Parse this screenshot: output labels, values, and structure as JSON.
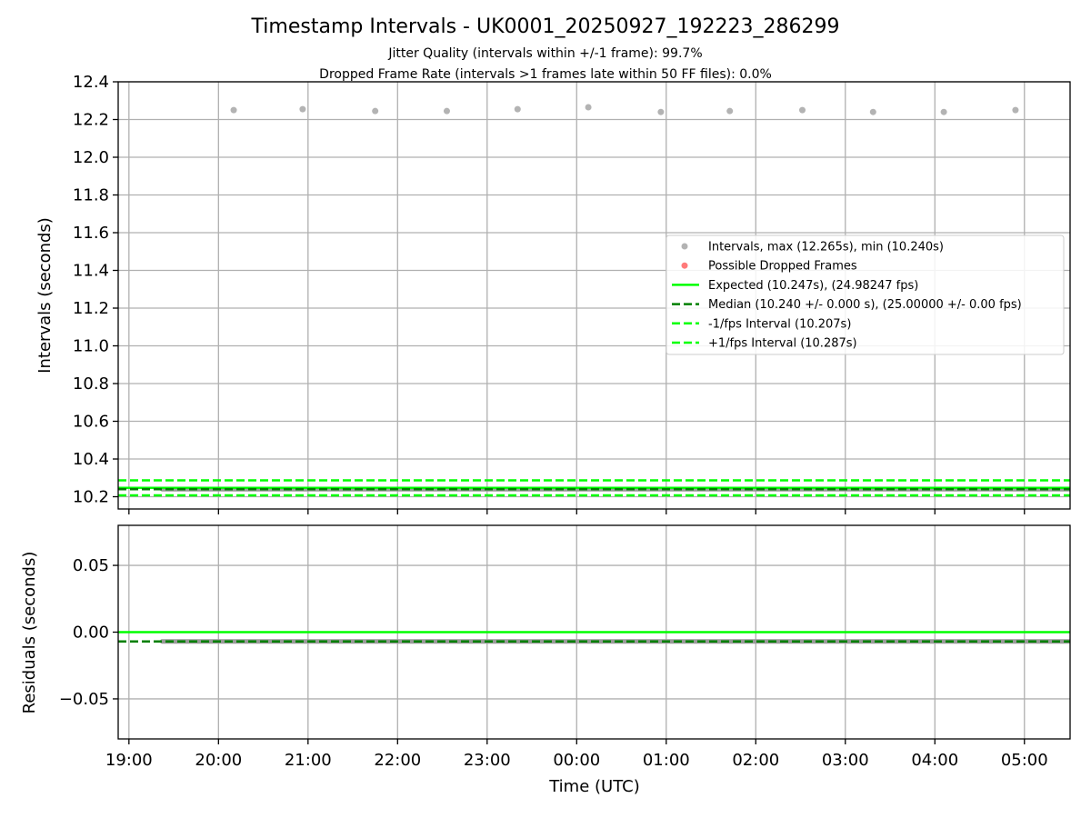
{
  "chart_data": [
    {
      "type": "scatter",
      "title": "Timestamp Intervals - UK0001_20250927_192223_286299",
      "subtitle_lines": [
        "Jitter Quality (intervals within +/-1 frame): 99.7%",
        "Dropped Frame Rate (intervals >1 frames late within 50 FF files): 0.0%"
      ],
      "xlabel": "",
      "ylabel": "Intervals (seconds)",
      "x_units": "hours since 19:00 UTC",
      "xlim": [
        -0.12,
        10.51
      ],
      "ylim": [
        10.135,
        12.4
      ],
      "yticks": [
        10.2,
        10.4,
        10.6,
        10.8,
        11.0,
        11.2,
        11.4,
        11.6,
        11.8,
        12.0,
        12.2,
        12.4
      ],
      "ytick_labels": [
        "10.2",
        "10.4",
        "10.6",
        "10.8",
        "11.0",
        "11.2",
        "11.4",
        "11.6",
        "11.8",
        "12.0",
        "12.2",
        "12.4"
      ],
      "grid": true,
      "legend_position": "center-right",
      "series": [
        {
          "name": "Intervals, max (12.265s), min (10.240s)",
          "kind": "scatter",
          "color": "#999999",
          "outliers": {
            "x": [
              1.17,
              1.94,
              2.75,
              3.55,
              4.34,
              5.13,
              5.94,
              6.71,
              7.52,
              8.31,
              9.1,
              9.9
            ],
            "y": [
              12.25,
              12.255,
              12.245,
              12.245,
              12.255,
              12.265,
              12.24,
              12.245,
              12.25,
              12.24,
              12.24,
              12.25
            ]
          },
          "dense_band": {
            "x_start": 0.37,
            "x_end": 10.51,
            "y": 10.24
          }
        },
        {
          "name": "Possible Dropped Frames",
          "kind": "scatter",
          "color": "#ff4d4d",
          "x": [],
          "y": []
        },
        {
          "name": "Expected (10.247s), (24.98247 fps)",
          "kind": "hline",
          "y": 10.247,
          "color": "#00ff00",
          "dash": false
        },
        {
          "name": "Median (10.240 +/- 0.000 s), (25.00000 +/- 0.00 fps)",
          "kind": "hline",
          "y": 10.24,
          "color": "#007f00",
          "dash": true
        },
        {
          "name": "-1/fps Interval (10.207s)",
          "kind": "hline",
          "y": 10.207,
          "color": "#00ff00",
          "dash": true
        },
        {
          "name": "+1/fps Interval (10.287s)",
          "kind": "hline",
          "y": 10.287,
          "color": "#00ff00",
          "dash": true
        }
      ]
    },
    {
      "type": "line",
      "xlabel": "Time (UTC)",
      "ylabel": "Residuals (seconds)",
      "xlim": [
        -0.12,
        10.51
      ],
      "ylim": [
        -0.08,
        0.08
      ],
      "yticks": [
        -0.05,
        0.0,
        0.05
      ],
      "ytick_labels": [
        "−0.05",
        "0.00",
        "0.05"
      ],
      "xticks": [
        0,
        1,
        2,
        3,
        4,
        5,
        6,
        7,
        8,
        9,
        10
      ],
      "xtick_labels": [
        "19:00",
        "20:00",
        "21:00",
        "22:00",
        "23:00",
        "00:00",
        "01:00",
        "02:00",
        "03:00",
        "04:00",
        "05:00"
      ],
      "grid": true,
      "series": [
        {
          "name": "Expected residual",
          "kind": "hline",
          "y": 0.0,
          "color": "#00ff00",
          "dash": false
        },
        {
          "name": "Median residual",
          "kind": "hline",
          "y": -0.007,
          "color": "#007f00",
          "dash": true
        },
        {
          "name": "Residuals",
          "kind": "band",
          "x_start": 0.37,
          "x_end": 10.51,
          "y": -0.007,
          "color": "#999999"
        }
      ]
    }
  ]
}
